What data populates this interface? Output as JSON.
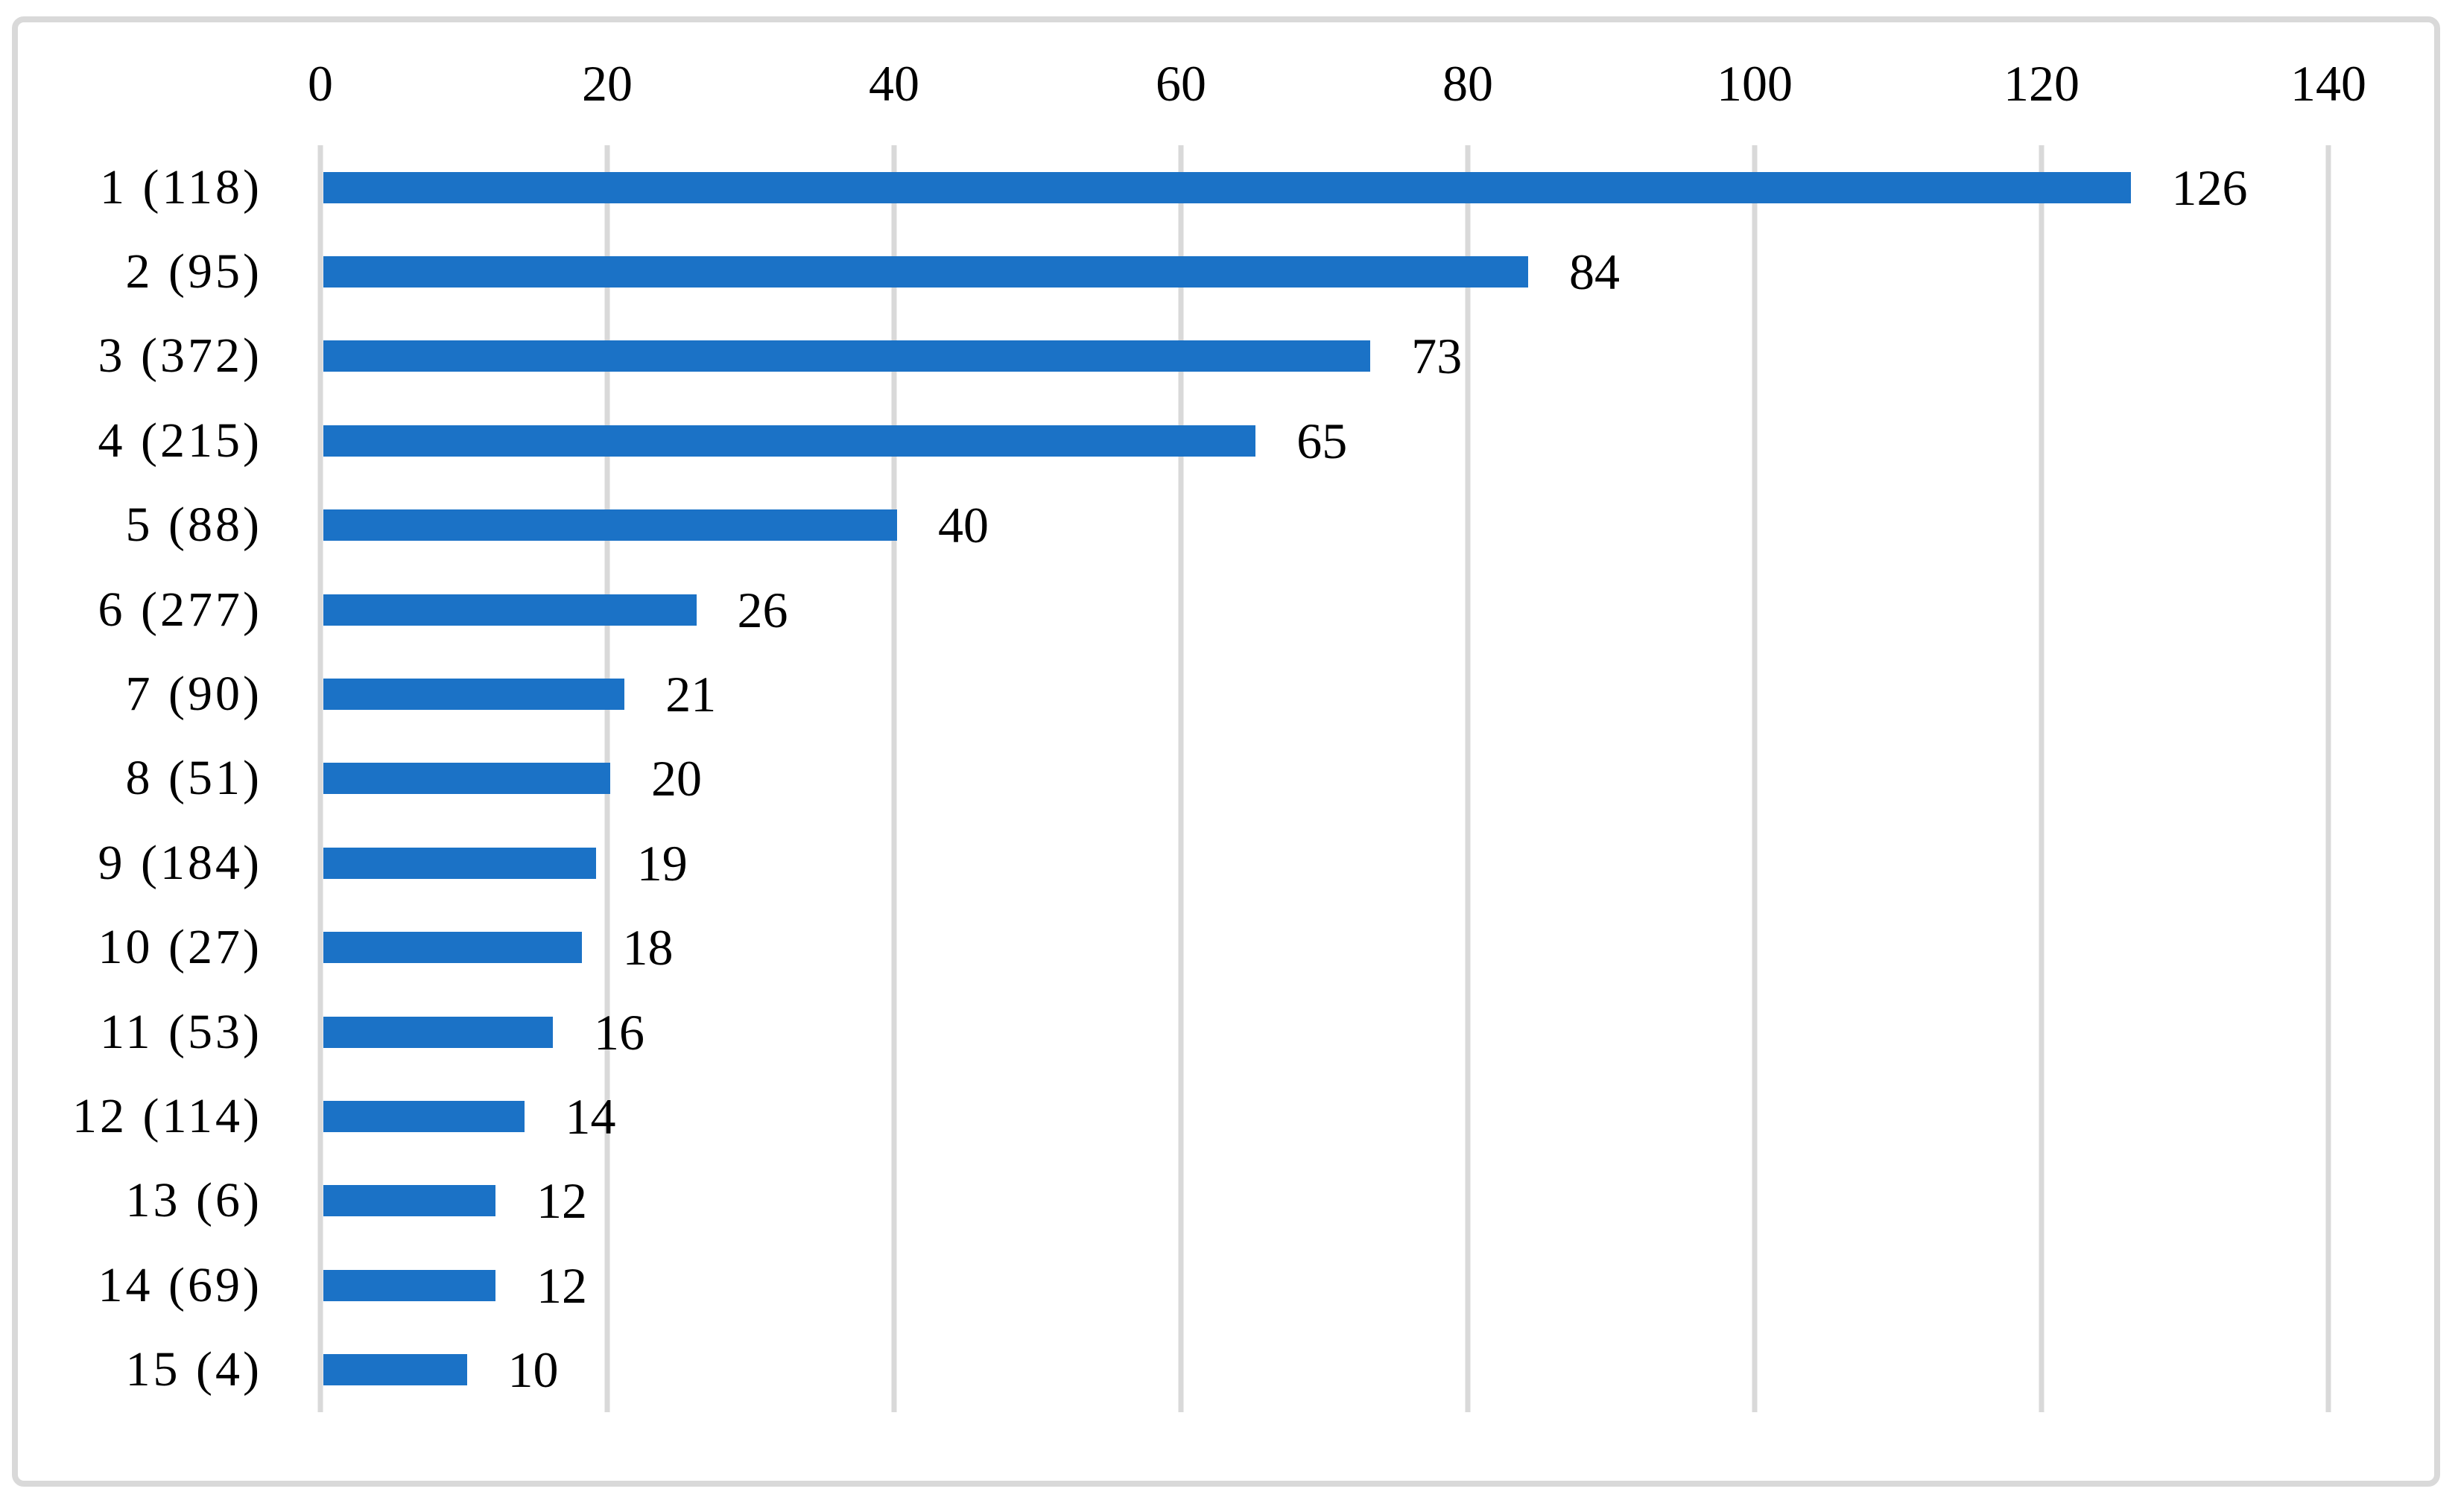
{
  "chart_data": {
    "type": "bar",
    "orientation": "horizontal",
    "title": "",
    "categories": [
      "1 (118)",
      "2 (95)",
      "3 (372)",
      "4 (215)",
      "5 (88)",
      "6 (277)",
      "7 (90)",
      "8 (51)",
      "9 (184)",
      "10 (27)",
      "11 (53)",
      "12 (114)",
      "13 (6)",
      "14 (69)",
      "15 (4)"
    ],
    "category_ranks": [
      1,
      2,
      3,
      4,
      5,
      6,
      7,
      8,
      9,
      10,
      11,
      12,
      13,
      14,
      15
    ],
    "category_counts": [
      118,
      95,
      372,
      215,
      88,
      277,
      90,
      51,
      184,
      27,
      53,
      114,
      6,
      69,
      4
    ],
    "values": [
      126,
      84,
      73,
      65,
      40,
      26,
      21,
      20,
      19,
      18,
      16,
      14,
      12,
      12,
      10
    ],
    "value_labels": [
      "126",
      "84",
      "73",
      "65",
      "40",
      "26",
      "21",
      "20",
      "19",
      "18",
      "16",
      "14",
      "12",
      "12",
      "10"
    ],
    "x_ticks": [
      "0",
      "20",
      "40",
      "60",
      "80",
      "100",
      "120",
      "140"
    ],
    "xlim": [
      0,
      140
    ],
    "grid": true,
    "legend": false,
    "axis_position": "top",
    "bar_color": "#1b72c6",
    "gridline_color": "#d9d9d9",
    "frame_border_color": "#d9d9d9",
    "text_color": "#000000",
    "background": "#ffffff"
  }
}
